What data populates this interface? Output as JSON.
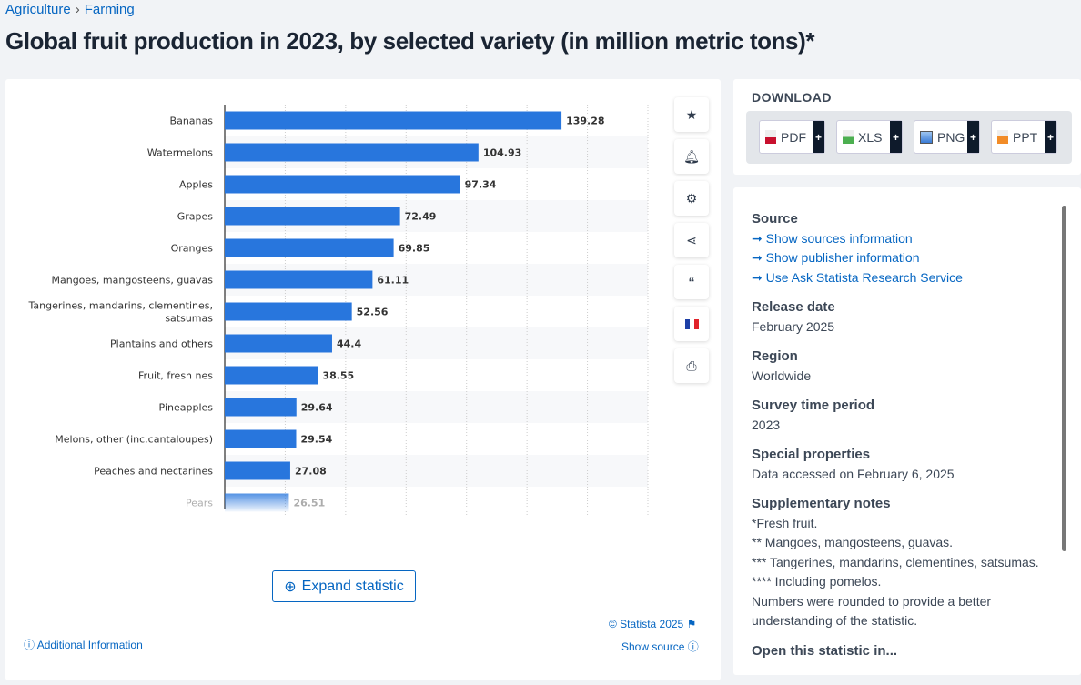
{
  "breadcrumb": [
    "Agriculture",
    "Farming"
  ],
  "title": "Global fruit production in 2023, by selected variety (in million metric tons)*",
  "chart_data": {
    "type": "bar",
    "orientation": "horizontal",
    "categories": [
      "Bananas",
      "Watermelons",
      "Apples",
      "Grapes",
      "Oranges",
      "Mangoes, mangosteens, guavas",
      "Tangerines, mandarins, clementines, satsumas",
      "Plantains and others",
      "Fruit, fresh nes",
      "Pineapples",
      "Melons, other (inc.cantaloupes)",
      "Peaches and nectarines",
      "Pears"
    ],
    "values": [
      139.28,
      104.93,
      97.34,
      72.49,
      69.85,
      61.11,
      52.56,
      44.4,
      38.55,
      29.64,
      29.54,
      27.08,
      26.51
    ],
    "labels": [
      "139.28",
      "104.93",
      "97.34",
      "72.49",
      "69.85",
      "61.11",
      "52.56",
      "44.4",
      "38.55",
      "29.64",
      "29.54",
      "27.08",
      "26.51"
    ],
    "xlim": [
      0,
      175
    ],
    "grid": true,
    "color": "#2876dd"
  },
  "tools": [
    "star-icon",
    "bell-icon",
    "gear-icon",
    "share-icon",
    "quote-icon",
    "flag-france-icon",
    "print-icon"
  ],
  "expand_label": "Expand statistic",
  "copyright": "© Statista 2025",
  "additional_info": "Additional Information",
  "show_source": "Show source",
  "download": {
    "title": "DOWNLOAD",
    "buttons": [
      {
        "label": "PDF",
        "color": "#c8102e"
      },
      {
        "label": "XLS",
        "color": "#4caf50"
      },
      {
        "label": "PNG",
        "color": "#3a7bd5"
      },
      {
        "label": "PPT",
        "color": "#f28c28"
      }
    ],
    "plus": "+"
  },
  "info": {
    "source_h": "Source",
    "links": [
      "Show sources information",
      "Show publisher information",
      "Use Ask Statista Research Service"
    ],
    "release_h": "Release date",
    "release": "February 2025",
    "region_h": "Region",
    "region": "Worldwide",
    "period_h": "Survey time period",
    "period": "2023",
    "special_h": "Special properties",
    "special": "Data accessed on February 6, 2025",
    "notes_h": "Supplementary notes",
    "notes": [
      "*Fresh fruit.",
      "** Mangoes, mangosteens, guavas.",
      "*** Tangerines, mandarins, clementines, satsumas.",
      "**** Including pomelos.",
      "Numbers were rounded to provide a better understanding of the statistic."
    ],
    "open_h": "Open this statistic in..."
  }
}
